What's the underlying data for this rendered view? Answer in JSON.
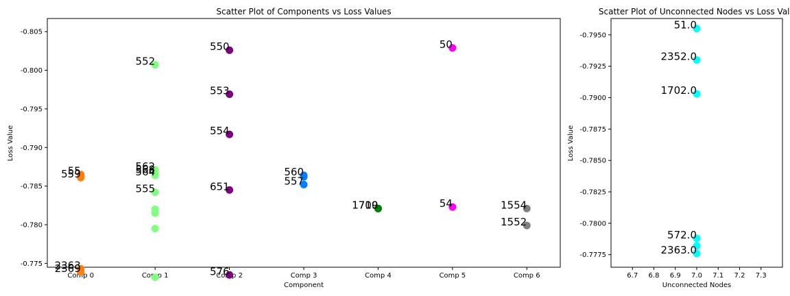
{
  "chart_data": [
    {
      "type": "scatter",
      "title": "Scatter Plot of Components vs Loss Values",
      "xlabel": "Component",
      "ylabel": "Loss Value",
      "categories": [
        "Comp 0",
        "Comp 1",
        "Comp 2",
        "Comp 3",
        "Comp 4",
        "Comp 5",
        "Comp 6"
      ],
      "ylim": [
        -0.7745,
        -0.8067
      ],
      "y_inverted": true,
      "yticks": [
        -0.775,
        -0.78,
        -0.785,
        -0.79,
        -0.795,
        -0.8,
        -0.805
      ],
      "ytick_labels": [
        "-0.775",
        "-0.780",
        "-0.785",
        "-0.790",
        "-0.795",
        "-0.800",
        "-0.805"
      ],
      "grid": false,
      "series": [
        {
          "component": 0,
          "color": "#ff7f0e",
          "points": [
            {
              "y": -0.7861,
              "label": "559"
            },
            {
              "y": -0.7863,
              "label": ""
            },
            {
              "y": -0.7865,
              "label": "55"
            },
            {
              "y": -0.7743,
              "label": "2363"
            },
            {
              "y": -0.7739,
              "label": "2369"
            }
          ]
        },
        {
          "component": 1,
          "color": "#80ff80",
          "points": [
            {
              "y": -0.8007,
              "label": "552"
            },
            {
              "y": -0.7842,
              "label": "555"
            },
            {
              "y": -0.7871,
              "label": "562"
            },
            {
              "y": -0.7867,
              "label": "568"
            },
            {
              "y": -0.7864,
              "label": "564"
            },
            {
              "y": -0.782,
              "label": ""
            },
            {
              "y": -0.7815,
              "label": ""
            },
            {
              "y": -0.7795,
              "label": ""
            },
            {
              "y": -0.7732,
              "label": ""
            }
          ]
        },
        {
          "component": 2,
          "color": "#800080",
          "points": [
            {
              "y": -0.8026,
              "label": "550"
            },
            {
              "y": -0.7969,
              "label": "553"
            },
            {
              "y": -0.7917,
              "label": "554"
            },
            {
              "y": -0.7845,
              "label": "651"
            },
            {
              "y": -0.7735,
              "label": "576"
            }
          ]
        },
        {
          "component": 3,
          "color": "#0080ff",
          "points": [
            {
              "y": -0.7852,
              "label": "557"
            },
            {
              "y": -0.7864,
              "label": "560"
            },
            {
              "y": -0.7862,
              "label": ""
            }
          ]
        },
        {
          "component": 4,
          "color": "#008000",
          "points": [
            {
              "y": -0.7821,
              "label": "1700"
            },
            {
              "y": -0.7821,
              "label": "1719"
            }
          ]
        },
        {
          "component": 5,
          "color": "#ff00ff",
          "points": [
            {
              "y": -0.8029,
              "label": "50"
            },
            {
              "y": -0.7823,
              "label": "54"
            }
          ]
        },
        {
          "component": 6,
          "color": "#808080",
          "points": [
            {
              "y": -0.7799,
              "label": "1552"
            },
            {
              "y": -0.7821,
              "label": "1554"
            }
          ]
        }
      ]
    },
    {
      "type": "scatter",
      "title": "Scatter Plot of Unconnected Nodes vs Loss Valu",
      "xlabel": "Unconnected Nodes",
      "ylabel": "Loss Value",
      "xlim": [
        6.6,
        7.4
      ],
      "xticks": [
        6.7,
        6.8,
        6.9,
        7.0,
        7.1,
        7.2,
        7.3
      ],
      "xtick_labels": [
        "6.7",
        "6.8",
        "6.9",
        "7.0",
        "7.1",
        "7.2",
        "7.3"
      ],
      "ylim": [
        -0.7765,
        -0.7963
      ],
      "y_inverted": true,
      "yticks": [
        -0.7775,
        -0.78,
        -0.7825,
        -0.785,
        -0.7875,
        -0.79,
        -0.7925,
        -0.795
      ],
      "ytick_labels": [
        "-0.7775",
        "-0.7800",
        "-0.7825",
        "-0.7850",
        "-0.7875",
        "-0.7900",
        "-0.7925",
        "-0.7950"
      ],
      "grid": false,
      "color": "#00ffff",
      "points": [
        {
          "x": 7.0,
          "y": -0.7955,
          "label": "51.0"
        },
        {
          "x": 7.0,
          "y": -0.793,
          "label": "2352.0"
        },
        {
          "x": 7.0,
          "y": -0.7903,
          "label": "1702.0"
        },
        {
          "x": 7.0,
          "y": -0.7788,
          "label": "572.0"
        },
        {
          "x": 7.0,
          "y": -0.7782,
          "label": ""
        },
        {
          "x": 7.0,
          "y": -0.7776,
          "label": "2363.0"
        }
      ]
    }
  ]
}
